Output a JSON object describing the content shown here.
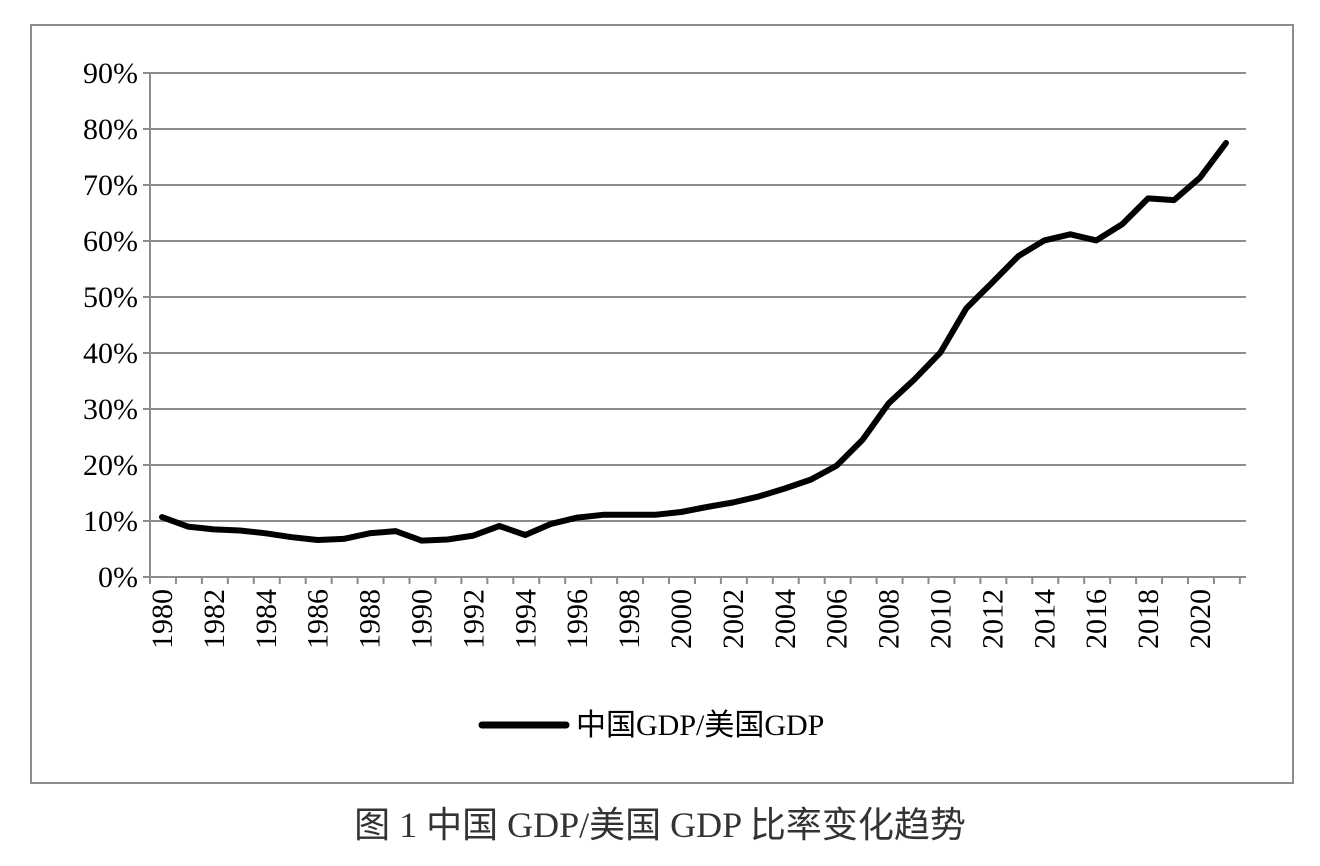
{
  "caption": "图 1  中国 GDP/美国 GDP 比率变化趋势",
  "chart_data": {
    "type": "line",
    "ylim": [
      0,
      90
    ],
    "ytick_values": [
      0,
      10,
      20,
      30,
      40,
      50,
      60,
      70,
      80,
      90
    ],
    "ytick_labels": [
      "0%",
      "10%",
      "20%",
      "30%",
      "40%",
      "50%",
      "60%",
      "70%",
      "80%",
      "90%"
    ],
    "xtick_labels": [
      "1980",
      "1982",
      "1984",
      "1986",
      "1988",
      "1990",
      "1992",
      "1994",
      "1996",
      "1998",
      "2000",
      "2002",
      "2004",
      "2006",
      "2008",
      "2010",
      "2012",
      "2014",
      "2016",
      "2018",
      "2020"
    ],
    "grid": true,
    "legend_position": "bottom-center",
    "line_color": "#000000",
    "x": [
      1980,
      1981,
      1982,
      1983,
      1984,
      1985,
      1986,
      1987,
      1988,
      1989,
      1990,
      1991,
      1992,
      1993,
      1994,
      1995,
      1996,
      1997,
      1998,
      1999,
      2000,
      2001,
      2002,
      2003,
      2004,
      2005,
      2006,
      2007,
      2008,
      2009,
      2010,
      2011,
      2012,
      2013,
      2014,
      2015,
      2016,
      2017,
      2018,
      2019,
      2020,
      2021
    ],
    "series": [
      {
        "name": "中国GDP/美国GDP",
        "values": [
          10.7,
          9.0,
          8.5,
          8.3,
          7.8,
          7.1,
          6.6,
          6.8,
          7.8,
          8.2,
          6.5,
          6.7,
          7.4,
          9.1,
          7.5,
          9.5,
          10.6,
          11.1,
          11.1,
          11.1,
          11.6,
          12.5,
          13.3,
          14.4,
          15.8,
          17.4,
          19.9,
          24.5,
          31.0,
          35.3,
          40.1,
          48.0,
          52.6,
          57.3,
          60.1,
          61.2,
          60.1,
          63.0,
          67.6,
          67.3,
          71.3,
          77.5
        ]
      }
    ]
  }
}
